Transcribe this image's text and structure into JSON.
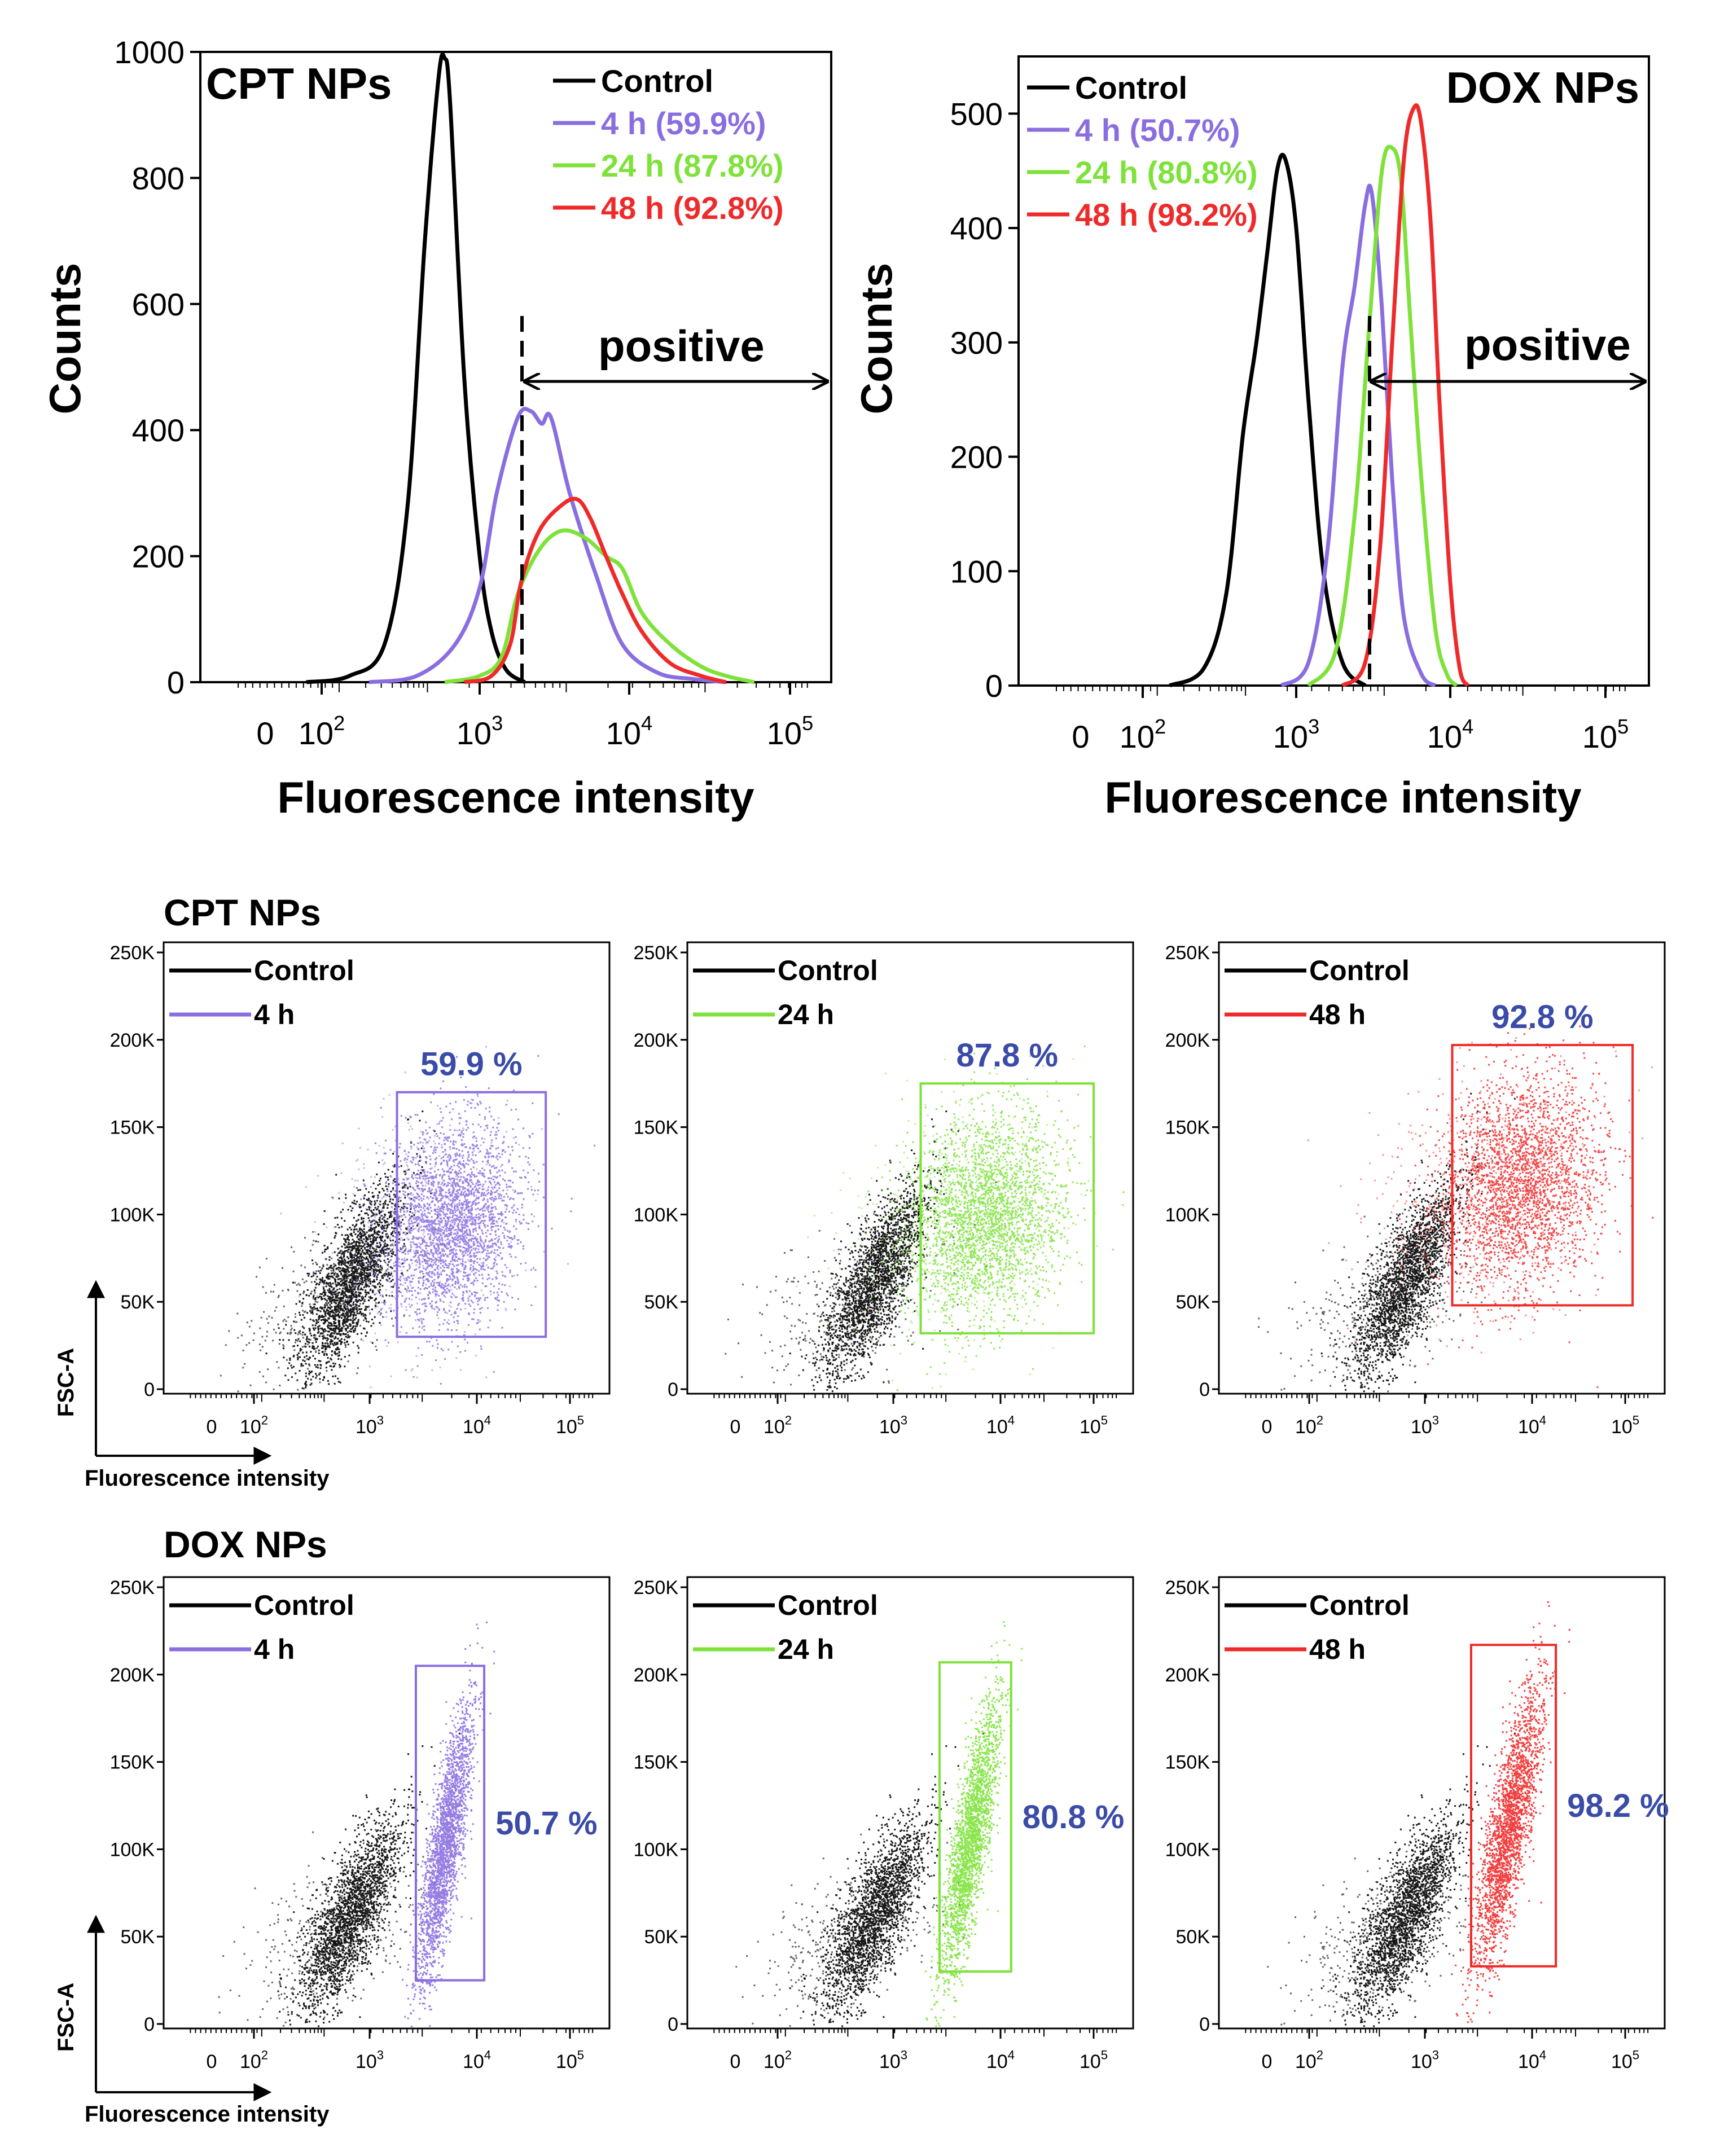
{
  "chart_data": [
    {
      "id": "hist-cpt",
      "type": "line",
      "title": "CPT NPs",
      "xlabel": "Fluorescence intensity",
      "ylabel": "Counts",
      "xscale": "log (flow cytometry biexponential)",
      "x_tick_labels": [
        "0",
        "10^2",
        "10^3",
        "10^4",
        "10^5"
      ],
      "ylim": [
        0,
        1000
      ],
      "y_ticks": [
        0,
        200,
        400,
        600,
        800,
        1000
      ],
      "annotation": "positive",
      "gate_threshold": 1800,
      "legend": [
        "Control",
        "4 h (59.9%)",
        "24 h (87.8%)",
        "48 h (92.8%)"
      ],
      "colors": [
        "#000000",
        "#8a6ee0",
        "#7ee23a",
        "#ef2a2a"
      ],
      "series": [
        {
          "name": "Control",
          "x": [
            80,
            150,
            250,
            350,
            450,
            550,
            600,
            650,
            800,
            1000,
            1200,
            1500,
            2000
          ],
          "values": [
            0,
            10,
            60,
            280,
            700,
            960,
            990,
            920,
            480,
            200,
            80,
            20,
            0
          ]
        },
        {
          "name": "4 h (59.9%)",
          "x": [
            200,
            400,
            700,
            1000,
            1300,
            1800,
            2200,
            2600,
            3000,
            4000,
            6000,
            9000,
            15000,
            25000,
            40000
          ],
          "values": [
            0,
            10,
            60,
            150,
            300,
            420,
            430,
            410,
            420,
            300,
            170,
            60,
            15,
            5,
            0
          ]
        },
        {
          "name": "24 h (87.8%)",
          "x": [
            600,
            1000,
            1400,
            1800,
            2500,
            3500,
            5000,
            7000,
            9000,
            12000,
            18000,
            28000,
            40000,
            60000
          ],
          "values": [
            0,
            10,
            40,
            140,
            210,
            240,
            230,
            200,
            180,
            110,
            60,
            25,
            10,
            0
          ]
        },
        {
          "name": "48 h (92.8%)",
          "x": [
            800,
            1200,
            1600,
            1900,
            2500,
            3500,
            4500,
            5500,
            7000,
            9000,
            12000,
            18000,
            28000,
            40000
          ],
          "values": [
            0,
            10,
            60,
            160,
            240,
            280,
            290,
            260,
            200,
            140,
            80,
            30,
            10,
            0
          ]
        }
      ]
    },
    {
      "id": "hist-dox",
      "type": "line",
      "title": "DOX NPs",
      "xlabel": "Fluorescence intensity",
      "ylabel": "Counts",
      "xscale": "log (flow cytometry biexponential)",
      "x_tick_labels": [
        "0",
        "10^2",
        "10^3",
        "10^4",
        "10^5"
      ],
      "ylim": [
        0,
        550
      ],
      "y_ticks": [
        0,
        100,
        200,
        300,
        400,
        500
      ],
      "annotation": "positive",
      "gate_threshold": 2700,
      "legend": [
        "Control",
        "4 h (50.7%)",
        "24 h (80.8%)",
        "48 h (98.2%)"
      ],
      "colors": [
        "#000000",
        "#8a6ee0",
        "#7ee23a",
        "#ef2a2a"
      ],
      "series": [
        {
          "name": "Control",
          "x": [
            150,
            250,
            350,
            450,
            550,
            650,
            750,
            850,
            1000,
            1200,
            1500,
            2000,
            2800
          ],
          "values": [
            0,
            15,
            80,
            220,
            300,
            380,
            450,
            460,
            400,
            250,
            100,
            20,
            0
          ]
        },
        {
          "name": "4 h (50.7%)",
          "x": [
            800,
            1200,
            1600,
            2000,
            2400,
            2800,
            3100,
            3600,
            4200,
            5000,
            6500,
            8000
          ],
          "values": [
            0,
            20,
            120,
            280,
            350,
            420,
            430,
            330,
            180,
            60,
            10,
            0
          ]
        },
        {
          "name": "24 h (80.8%)",
          "x": [
            1200,
            1800,
            2400,
            3000,
            3600,
            4200,
            4800,
            5500,
            6500,
            8000,
            9500,
            11000
          ],
          "values": [
            0,
            30,
            150,
            320,
            450,
            470,
            440,
            320,
            180,
            50,
            10,
            0
          ]
        },
        {
          "name": "48 h (98.2%)",
          "x": [
            2000,
            2800,
            3500,
            4200,
            5000,
            5800,
            6500,
            7500,
            8500,
            10000,
            11500,
            13000
          ],
          "values": [
            0,
            20,
            120,
            300,
            460,
            505,
            490,
            400,
            250,
            90,
            15,
            0
          ]
        }
      ]
    },
    {
      "id": "scatter-cpt",
      "type": "scatter",
      "title": "CPT NPs",
      "xlabel": "Fluorescence intensity",
      "ylabel": "FSC-A",
      "x_tick_labels": [
        "0",
        "10^2",
        "10^3",
        "10^4",
        "10^5"
      ],
      "y_tick_labels": [
        "0",
        "50K",
        "100K",
        "150K",
        "200K",
        "250K"
      ],
      "panels": [
        {
          "legend": [
            "Control",
            "4 h"
          ],
          "color": "#8a6ee0",
          "percent": "59.9 %",
          "gate": {
            "x": [
              1800,
              55000
            ],
            "y": [
              30000,
              170000
            ]
          }
        },
        {
          "legend": [
            "Control",
            "24 h"
          ],
          "color": "#7ee23a",
          "percent": "87.8 %",
          "gate": {
            "x": [
              1800,
              100000
            ],
            "y": [
              32000,
              175000
            ]
          }
        },
        {
          "legend": [
            "Control",
            "48 h"
          ],
          "color": "#ef2a2a",
          "percent": "92.8 %",
          "gate": {
            "x": [
              1800,
              120000
            ],
            "y": [
              48000,
              197000
            ]
          }
        }
      ]
    },
    {
      "id": "scatter-dox",
      "type": "scatter",
      "title": "DOX NPs",
      "xlabel": "Fluorescence intensity",
      "ylabel": "FSC-A",
      "x_tick_labels": [
        "0",
        "10^2",
        "10^3",
        "10^4",
        "10^5"
      ],
      "y_tick_labels": [
        "0",
        "50K",
        "100K",
        "150K",
        "200K",
        "250K"
      ],
      "panels": [
        {
          "legend": [
            "Control",
            "4 h"
          ],
          "color": "#8a6ee0",
          "percent": "50.7 %",
          "gate": {
            "x": [
              2700,
              12000
            ],
            "y": [
              25000,
              205000
            ]
          }
        },
        {
          "legend": [
            "Control",
            "24 h"
          ],
          "color": "#7ee23a",
          "percent": "80.8 %",
          "gate": {
            "x": [
              2700,
              13000
            ],
            "y": [
              30000,
              207000
            ]
          }
        },
        {
          "legend": [
            "Control",
            "48 h"
          ],
          "color": "#ef2a2a",
          "percent": "98.2 %",
          "gate": {
            "x": [
              2700,
              18000
            ],
            "y": [
              33000,
              217000
            ]
          }
        }
      ]
    }
  ]
}
